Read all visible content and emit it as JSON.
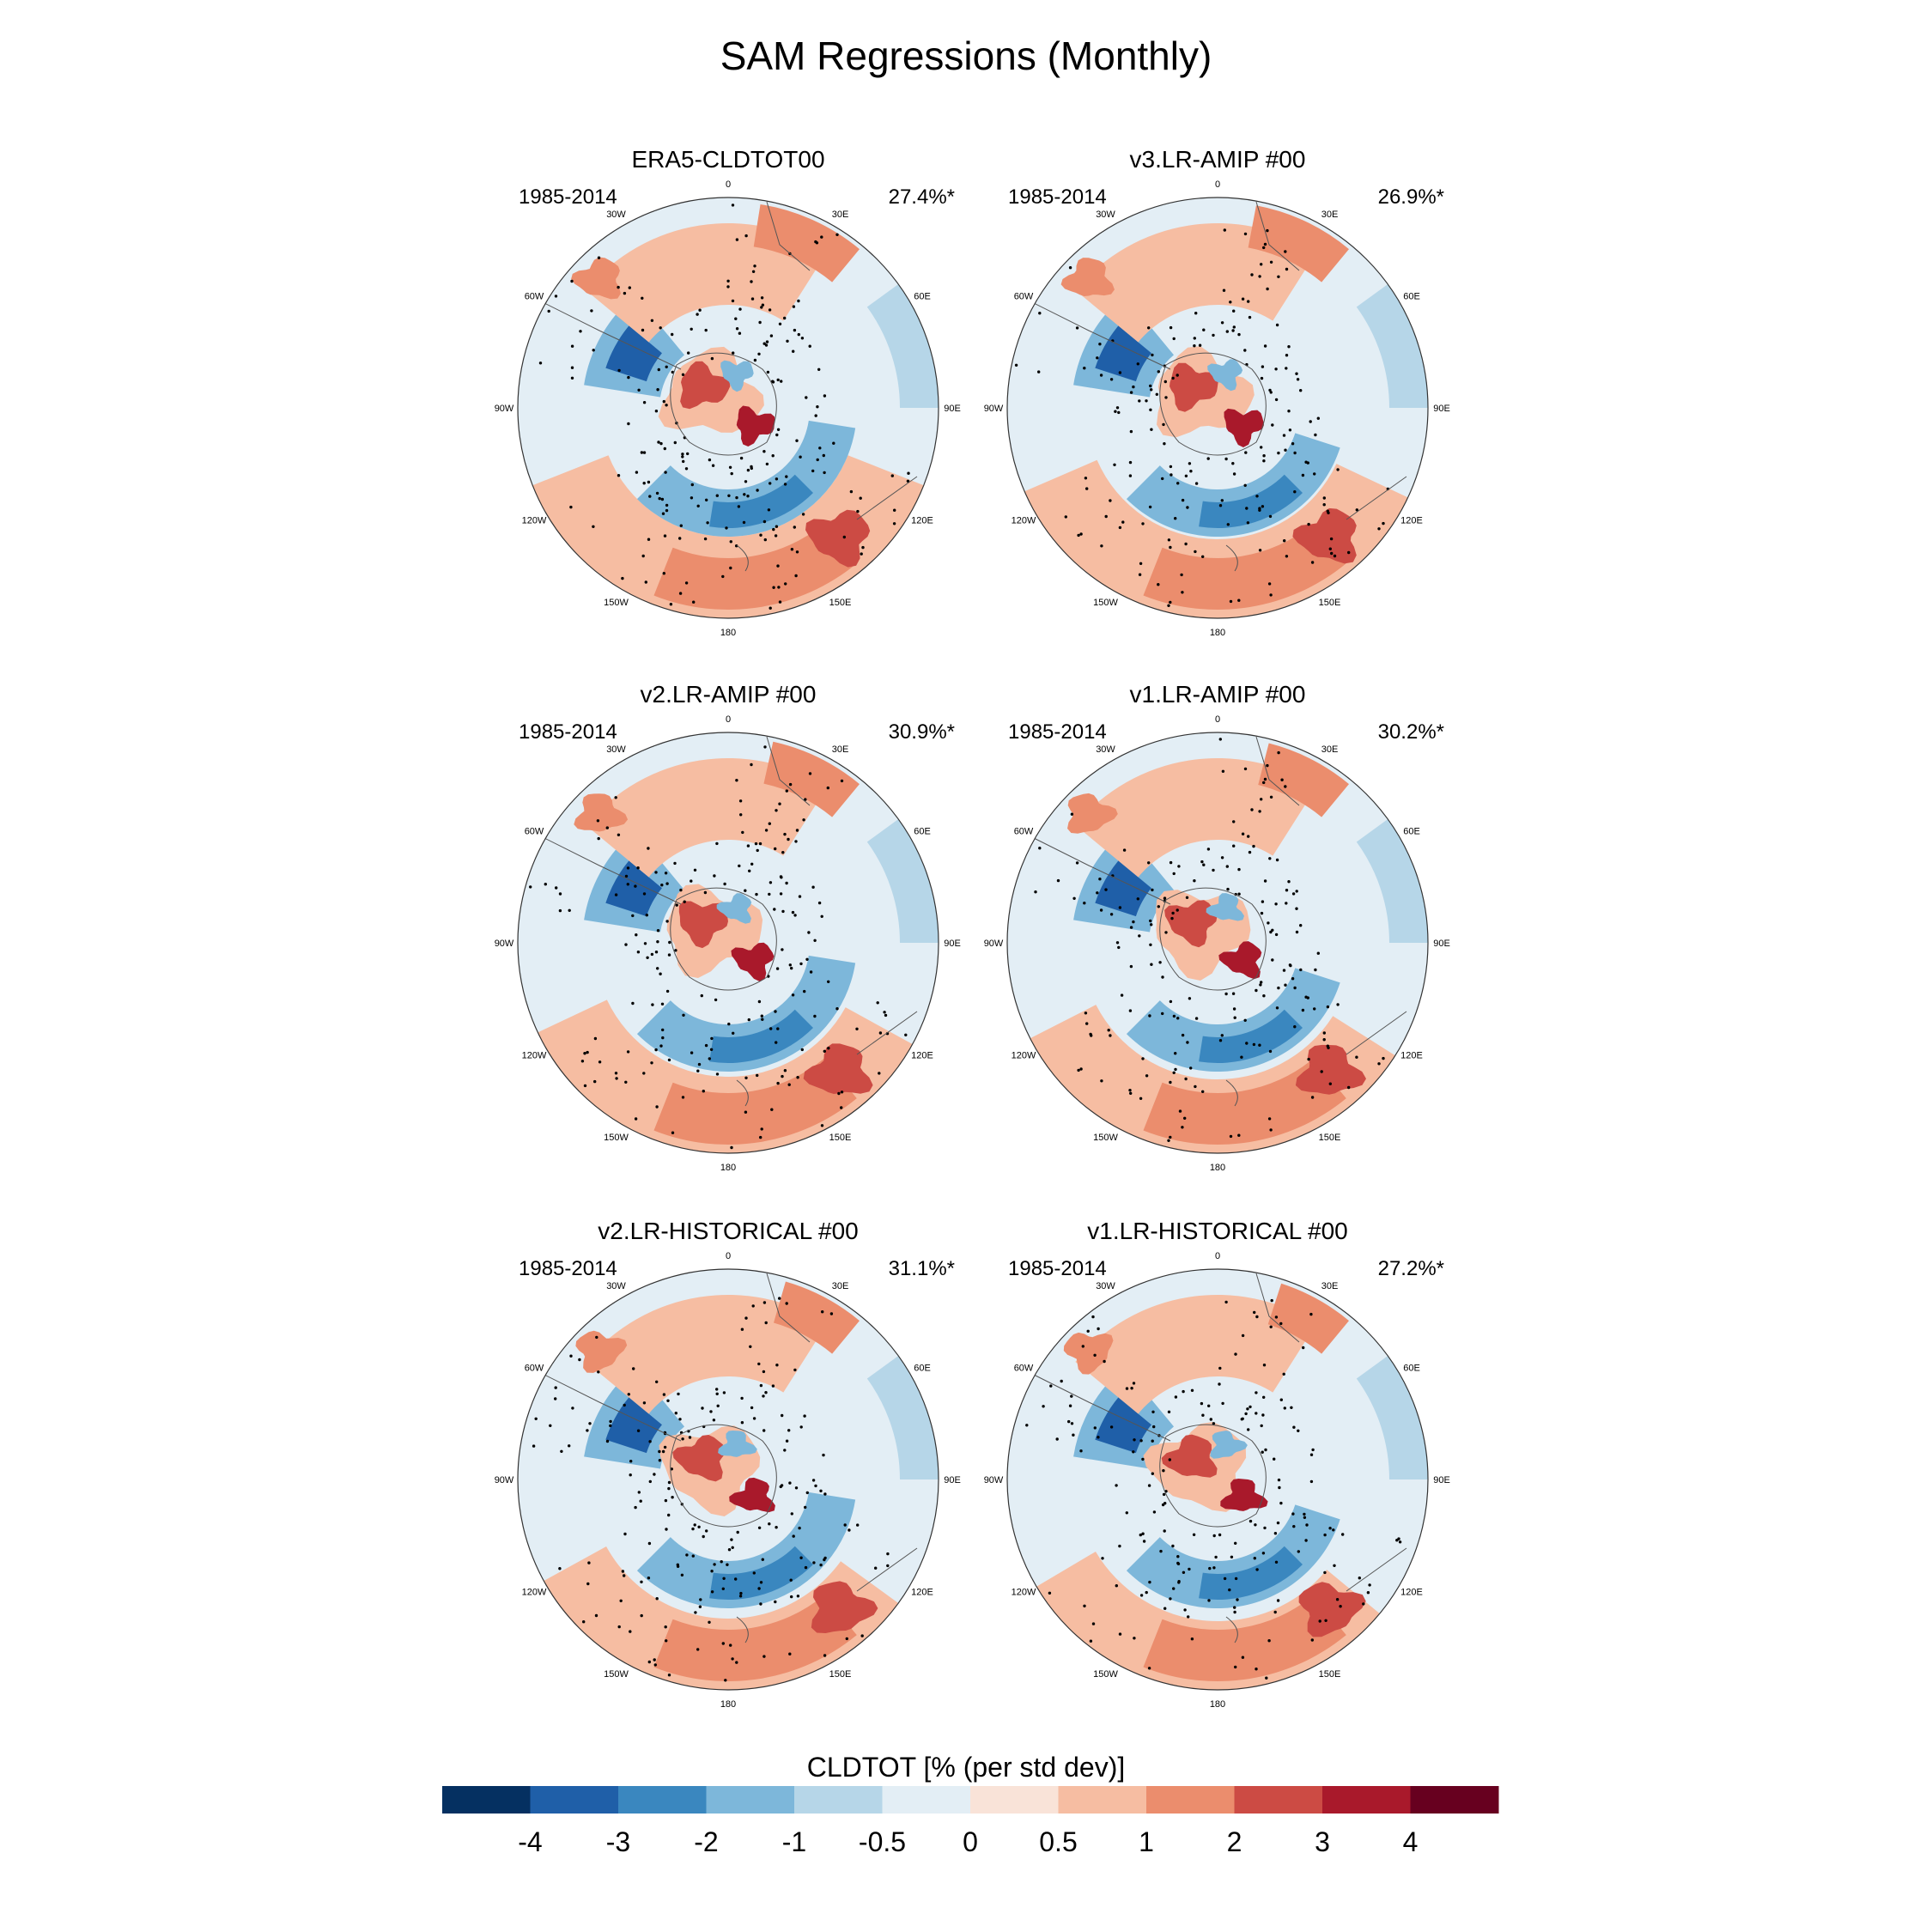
{
  "figure": {
    "title": "SAM Regressions (Monthly)",
    "colorbar": {
      "title": "CLDTOT [% (per std dev)]",
      "levels": [
        "-4",
        "-3",
        "-2",
        "-1",
        "-0.5",
        "0",
        "0.5",
        "1",
        "2",
        "3",
        "4"
      ],
      "colors": [
        "#053061",
        "#1f5fa8",
        "#3a87bf",
        "#7db7da",
        "#b6d6e8",
        "#e3eef5",
        "#f9e3d8",
        "#f6bda2",
        "#eb8d6d",
        "#cc4b44",
        "#a9192b",
        "#67001f"
      ]
    },
    "longitude_labels": [
      "0",
      "30E",
      "60E",
      "90E",
      "120E",
      "150E",
      "180",
      "150W",
      "120W",
      "90W",
      "60W",
      "30W"
    ],
    "panels": [
      {
        "title": "ERA5-CLDTOT00",
        "period": "1985-2014",
        "stat": "27.4%*"
      },
      {
        "title": "v3.LR-AMIP  #00",
        "period": "1985-2014",
        "stat": "26.9%*"
      },
      {
        "title": "v2.LR-AMIP  #00",
        "period": "1985-2014",
        "stat": "30.9%*"
      },
      {
        "title": "v1.LR-AMIP  #00",
        "period": "1985-2014",
        "stat": "30.2%*"
      },
      {
        "title": "v2.LR-HISTORICAL  #00",
        "period": "1985-2014",
        "stat": "31.1%*"
      },
      {
        "title": "v1.LR-HISTORICAL  #00",
        "period": "1985-2014",
        "stat": "27.2%*"
      }
    ]
  }
}
